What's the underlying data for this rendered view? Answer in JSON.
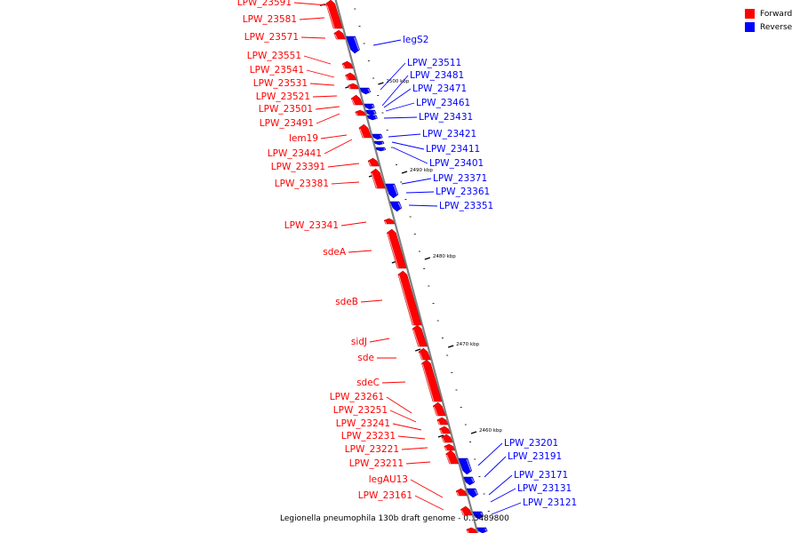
{
  "colors": {
    "forward": "#ff0000",
    "reverse": "#0000ff",
    "backbone": "#808080"
  },
  "legend": {
    "forward_label": "Forward",
    "reverse_label": "Reverse"
  },
  "caption": "Legionella pneumophila 130b draft genome - 0..3489800",
  "scale_labels": [
    "2500 kbp",
    "2490 kbp",
    "2480 kbp",
    "2470 kbp",
    "2460 kbp"
  ],
  "forward_genes": [
    "LPW_23591",
    "LPW_23581",
    "LPW_23571",
    "LPW_23551",
    "LPW_23541",
    "LPW_23531",
    "LPW_23521",
    "LPW_23501",
    "LPW_23491",
    "lem19",
    "LPW_23441",
    "LPW_23391",
    "LPW_23381",
    "LPW_23341",
    "sdeA",
    "sdeB",
    "sidJ",
    "sde",
    "sdeC",
    "LPW_23261",
    "LPW_23251",
    "LPW_23241",
    "LPW_23231",
    "LPW_23221",
    "LPW_23211",
    "legAU13",
    "LPW_23161"
  ],
  "reverse_genes": [
    "legS2",
    "LPW_23511",
    "LPW_23481",
    "LPW_23471",
    "LPW_23461",
    "LPW_23431",
    "LPW_23421",
    "LPW_23411",
    "LPW_23401",
    "LPW_23371",
    "LPW_23361",
    "LPW_23351",
    "LPW_23201",
    "LPW_23191",
    "LPW_23171",
    "LPW_23131",
    "LPW_23121"
  ]
}
